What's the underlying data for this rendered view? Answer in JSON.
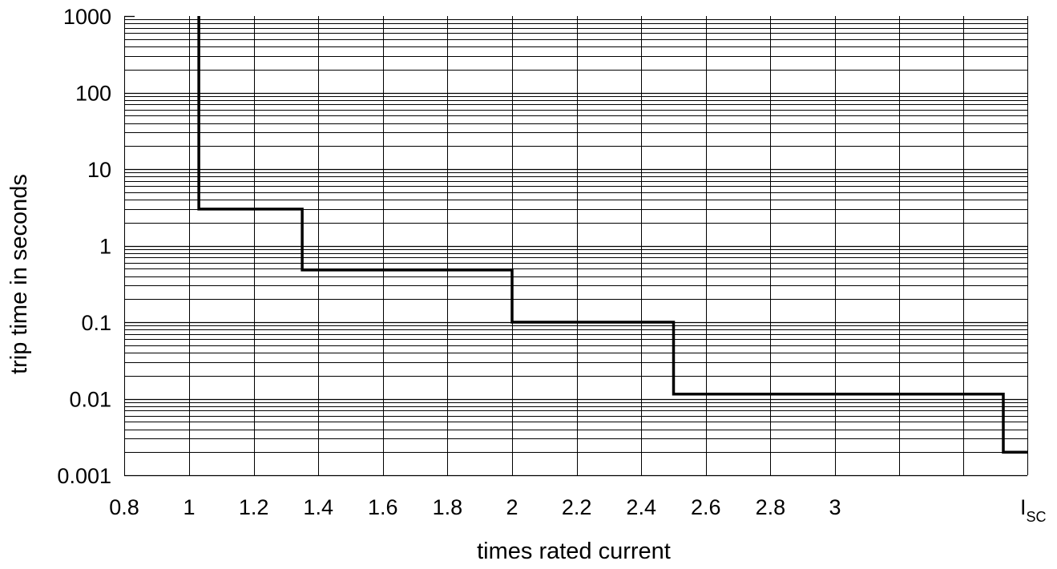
{
  "chart_data": {
    "type": "line",
    "line_shape": "step",
    "title": "",
    "xlabel": "times rated current",
    "ylabel": "trip time in seconds",
    "y_scale": "log",
    "ylim": [
      0.001,
      1000
    ],
    "xlim": [
      0.8,
      3.8
    ],
    "grid": true,
    "x_tick_labels": [
      {
        "value": 0.8,
        "label": "0.8"
      },
      {
        "value": 1.0,
        "label": "1"
      },
      {
        "value": 1.2,
        "label": "1.2"
      },
      {
        "value": 1.4,
        "label": "1.4"
      },
      {
        "value": 1.6,
        "label": "1.6"
      },
      {
        "value": 1.8,
        "label": "1.8"
      },
      {
        "value": 2.0,
        "label": "2"
      },
      {
        "value": 2.2,
        "label": "2.2"
      },
      {
        "value": 2.4,
        "label": "2.4"
      },
      {
        "value": 2.6,
        "label": "2.6"
      },
      {
        "value": 2.8,
        "label": "2.8"
      },
      {
        "value": 3.0,
        "label": "3"
      }
    ],
    "x_end_label": {
      "main": "I",
      "sub": "SC"
    },
    "y_tick_labels": [
      {
        "value": 1000,
        "label": "1000"
      },
      {
        "value": 100,
        "label": "100"
      },
      {
        "value": 10,
        "label": "10"
      },
      {
        "value": 1,
        "label": "1"
      },
      {
        "value": 0.1,
        "label": "0.1"
      },
      {
        "value": 0.01,
        "label": "0.01"
      },
      {
        "value": 0.001,
        "label": "0.001"
      }
    ],
    "series": [
      {
        "points": [
          [
            1.03,
            1000
          ],
          [
            1.03,
            3
          ],
          [
            1.35,
            3
          ],
          [
            1.35,
            0.48
          ],
          [
            2.0,
            0.48
          ],
          [
            2.0,
            0.1
          ],
          [
            2.5,
            0.1
          ],
          [
            2.5,
            0.0115
          ],
          [
            3.7,
            0.0115
          ],
          [
            3.7,
            0.002
          ],
          [
            3.8,
            0.002
          ]
        ]
      }
    ]
  }
}
